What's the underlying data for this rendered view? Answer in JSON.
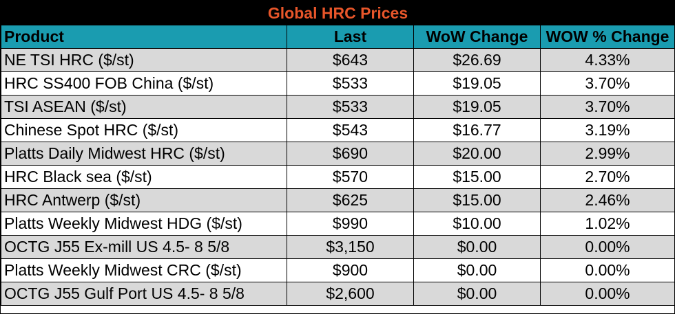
{
  "table": {
    "title": "Global HRC Prices",
    "title_color": "#e8562a",
    "header_color": "#1a9cb0",
    "columns": [
      "Product",
      "Last",
      "WoW Change",
      "WOW % Change"
    ],
    "rows": [
      {
        "product": "NE TSI HRC ($/st)",
        "last": "$643",
        "wow_change": "$26.69",
        "wow_pct": "4.33%"
      },
      {
        "product": "HRC SS400 FOB China ($/st)",
        "last": "$533",
        "wow_change": "$19.05",
        "wow_pct": "3.70%"
      },
      {
        "product": "TSI ASEAN ($/st)",
        "last": "$533",
        "wow_change": "$19.05",
        "wow_pct": "3.70%"
      },
      {
        "product": "Chinese Spot HRC ($/st)",
        "last": "$543",
        "wow_change": "$16.77",
        "wow_pct": "3.19%"
      },
      {
        "product": "Platts Daily Midwest HRC ($/st)",
        "last": "$690",
        "wow_change": "$20.00",
        "wow_pct": "2.99%"
      },
      {
        "product": "HRC Black sea ($/st)",
        "last": "$570",
        "wow_change": "$15.00",
        "wow_pct": "2.70%"
      },
      {
        "product": "HRC Antwerp ($/st)",
        "last": "$625",
        "wow_change": "$15.00",
        "wow_pct": "2.46%"
      },
      {
        "product": "Platts Weekly Midwest HDG ($/st)",
        "last": "$990",
        "wow_change": "$10.00",
        "wow_pct": "1.02%"
      },
      {
        "product": "OCTG J55 Ex-mill US 4.5- 8 5/8",
        "last": "$3,150",
        "wow_change": "$0.00",
        "wow_pct": "0.00%"
      },
      {
        "product": "Platts Weekly Midwest CRC ($/st)",
        "last": "$900",
        "wow_change": "$0.00",
        "wow_pct": "0.00%"
      },
      {
        "product": "OCTG J55 Gulf Port US 4.5- 8 5/8",
        "last": "$2,600",
        "wow_change": "$0.00",
        "wow_pct": "0.00%"
      }
    ]
  }
}
